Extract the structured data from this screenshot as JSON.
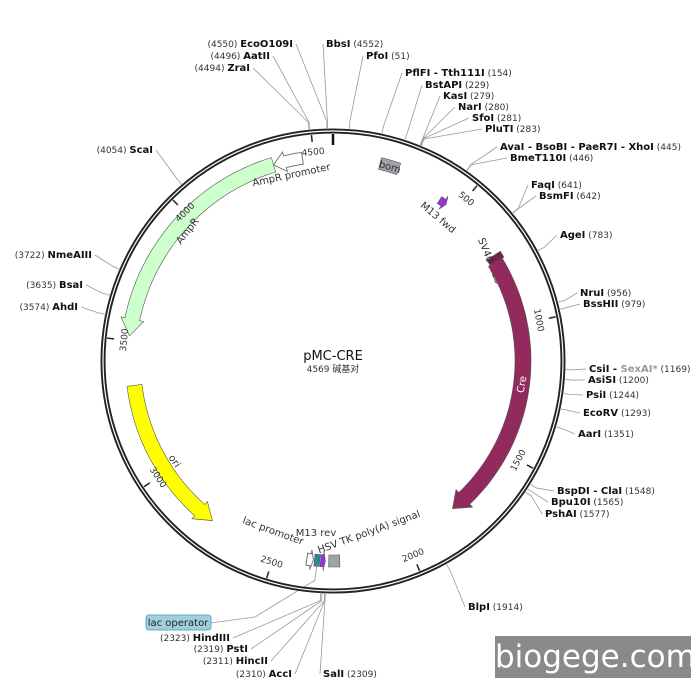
{
  "plasmid": {
    "name": "pMC-CRE",
    "length_label": "4569 碱基对",
    "length": 4569
  },
  "ticks": [
    500,
    1000,
    1500,
    2000,
    2500,
    3000,
    3500,
    4000,
    4500
  ],
  "sites": [
    {
      "name": "EcoO109I",
      "pos": 4550,
      "pos_label": "(4550)"
    },
    {
      "name": "AatII",
      "pos": 4496,
      "pos_label": "(4496)"
    },
    {
      "name": "ZraI",
      "pos": 4494,
      "pos_label": "(4494)"
    },
    {
      "name": "BbsI",
      "pos": 4552,
      "pos_label": "(4552)"
    },
    {
      "name": "PfoI",
      "pos": 51,
      "pos_label": "(51)"
    },
    {
      "name": "PflFI - Tth111I",
      "pos": 154,
      "pos_label": "(154)"
    },
    {
      "name": "BstAPI",
      "pos": 229,
      "pos_label": "(229)"
    },
    {
      "name": "KasI",
      "pos": 279,
      "pos_label": "(279)"
    },
    {
      "name": "NarI",
      "pos": 280,
      "pos_label": "(280)"
    },
    {
      "name": "SfoI",
      "pos": 281,
      "pos_label": "(281)"
    },
    {
      "name": "PluTI",
      "pos": 283,
      "pos_label": "(283)"
    },
    {
      "name": "AvaI - BsoBI - PaeR7I - XhoI",
      "pos": 445,
      "pos_label": "(445)"
    },
    {
      "name": "BmeT110I",
      "pos": 446,
      "pos_label": "(446)"
    },
    {
      "name": "FaqI",
      "pos": 641,
      "pos_label": "(641)"
    },
    {
      "name": "BsmFI",
      "pos": 642,
      "pos_label": "(642)"
    },
    {
      "name": "AgeI",
      "pos": 783,
      "pos_label": "(783)"
    },
    {
      "name": "NruI",
      "pos": 956,
      "pos_label": "(956)"
    },
    {
      "name": "BssHII",
      "pos": 979,
      "pos_label": "(979)"
    },
    {
      "name": "CsiI - ",
      "name_gray": "SexAI*",
      "pos": 1169,
      "pos_label": "(1169)"
    },
    {
      "name": "AsiSI",
      "pos": 1200,
      "pos_label": "(1200)"
    },
    {
      "name": "PsiI",
      "pos": 1244,
      "pos_label": "(1244)"
    },
    {
      "name": "EcoRV",
      "pos": 1293,
      "pos_label": "(1293)"
    },
    {
      "name": "AarI",
      "pos": 1351,
      "pos_label": "(1351)"
    },
    {
      "name": "BspDI - ClaI",
      "pos": 1548,
      "pos_label": "(1548)"
    },
    {
      "name": "Bpu10I",
      "pos": 1565,
      "pos_label": "(1565)"
    },
    {
      "name": "PshAI",
      "pos": 1577,
      "pos_label": "(1577)"
    },
    {
      "name": "BlpI",
      "pos": 1914,
      "pos_label": "(1914)"
    },
    {
      "name": "SalI",
      "pos": 2309,
      "pos_label": "(2309)"
    },
    {
      "name": "AccI",
      "pos": 2310,
      "pos_label": "(2310)"
    },
    {
      "name": "HincII",
      "pos": 2311,
      "pos_label": "(2311)"
    },
    {
      "name": "PstI",
      "pos": 2319,
      "pos_label": "(2319)"
    },
    {
      "name": "HindIII",
      "pos": 2323,
      "pos_label": "(2323)"
    },
    {
      "name": "AhdI",
      "pos": 3574,
      "pos_label": "(3574)"
    },
    {
      "name": "BsaI",
      "pos": 3635,
      "pos_label": "(3635)"
    },
    {
      "name": "NmeAIII",
      "pos": 3722,
      "pos_label": "(3722)"
    },
    {
      "name": "ScaI",
      "pos": 4054,
      "pos_label": "(4054)"
    }
  ],
  "features": [
    {
      "name": "bom",
      "start": 170,
      "end": 240,
      "color": "#a0a4aa",
      "type": "box",
      "direction": "none"
    },
    {
      "name": "M13 fwd",
      "start": 425,
      "end": 455,
      "color": "#9b30e0",
      "type": "arrow",
      "direction": "forward"
    },
    {
      "name": "SV40 NLS",
      "start": 720,
      "end": 745,
      "color": "#7a1f4c",
      "type": "box",
      "direction": "none"
    },
    {
      "name": "Cre",
      "start": 745,
      "end": 1790,
      "color": "#932a5e",
      "type": "arrow",
      "direction": "forward"
    },
    {
      "name": "HSV TK poly(A) signal",
      "start": 2260,
      "end": 2300,
      "color": "#a0a4aa",
      "type": "box",
      "direction": "none"
    },
    {
      "name": "M13 rev",
      "start": 2312,
      "end": 2330,
      "color": "#9b30e0",
      "type": "arrow",
      "direction": "reverse"
    },
    {
      "name": "lac operator",
      "start": 2333,
      "end": 2352,
      "color": "#2a8a9a",
      "type": "box",
      "direction": "none"
    },
    {
      "name": "lac promoter",
      "start": 2356,
      "end": 2380,
      "color": "#ffffff",
      "type": "outline",
      "direction": "reverse"
    },
    {
      "name": "ori",
      "start": 2755,
      "end": 3338,
      "color": "#ffff00",
      "type": "arrow",
      "direction": "reverse"
    },
    {
      "name": "AmpR",
      "start": 3516,
      "end": 4355,
      "color": "#ccffcc",
      "type": "arrow",
      "direction": "reverse"
    },
    {
      "name": "AmpR promoter",
      "start": 4355,
      "end": 4460,
      "color": "#ffffff",
      "type": "outline",
      "direction": "reverse"
    }
  ],
  "watermark": "biogege.com"
}
